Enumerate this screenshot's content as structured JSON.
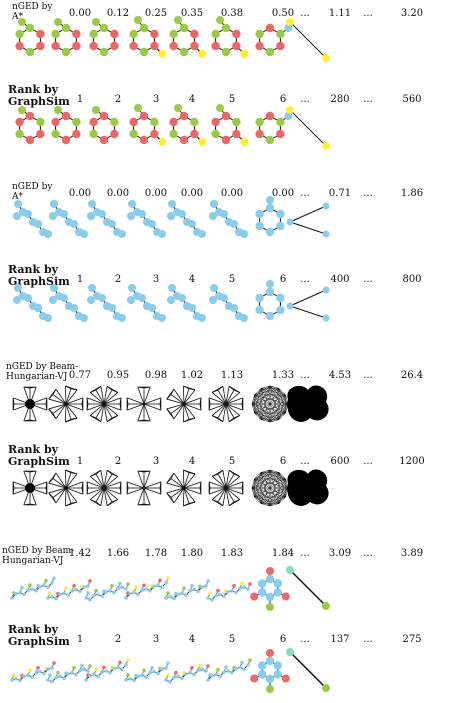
{
  "panels": [
    {
      "top_label": "nGED by\nA*",
      "top_values": [
        "0.00",
        "0.12",
        "0.25",
        "0.35",
        "0.38",
        "0.50",
        "...",
        "1.11",
        "...",
        "3.20"
      ],
      "rank_label": "Rank by\nGraphSim",
      "rank_values": [
        "1",
        "2",
        "3",
        "4",
        "5",
        "6",
        "...",
        "280",
        "...",
        "560"
      ],
      "node_colors": {
        "red": "#ee6666",
        "green": "#99cc44",
        "yellow": "#ffee33",
        "blue": "#88ccee"
      }
    },
    {
      "top_label": "nGED by\nA*",
      "top_values": [
        "0.00",
        "0.00",
        "0.00",
        "0.00",
        "0.00",
        "0.00",
        "...",
        "0.71",
        "...",
        "1.86"
      ],
      "rank_label": "Rank by\nGraphSim",
      "rank_values": [
        "1",
        "2",
        "3",
        "4",
        "5",
        "6",
        "...",
        "400",
        "...",
        "800"
      ],
      "node_colors": {
        "blue": "#88ccee"
      }
    },
    {
      "top_label": "nGED by Beam-\nHungarian-VJ",
      "top_values": [
        "0.77",
        "0.95",
        "0.98",
        "1.02",
        "1.13",
        "1.33",
        "...",
        "4.53",
        "...",
        "26.4"
      ],
      "rank_label": "Rank by\nGraphSim",
      "rank_values": [
        "1",
        "2",
        "3",
        "4",
        "5",
        "6",
        "...",
        "600",
        "...",
        "1200"
      ],
      "node_colors": {
        "black": "#000000"
      }
    },
    {
      "top_label": "nGED by Beam-\nHungarian-VJ",
      "top_values": [
        "1.42",
        "1.66",
        "1.78",
        "1.80",
        "1.83",
        "1.84",
        "...",
        "3.09",
        "...",
        "3.89"
      ],
      "rank_label": "Rank by\nGraphSim",
      "rank_values": [
        "1",
        "2",
        "3",
        "4",
        "5",
        "6",
        "...",
        "137",
        "...",
        "275"
      ],
      "node_colors": {
        "blue": "#88ccee",
        "red": "#ee6666",
        "green": "#99cc44",
        "yellow": "#ffee33",
        "teal": "#88ddbb"
      }
    }
  ]
}
